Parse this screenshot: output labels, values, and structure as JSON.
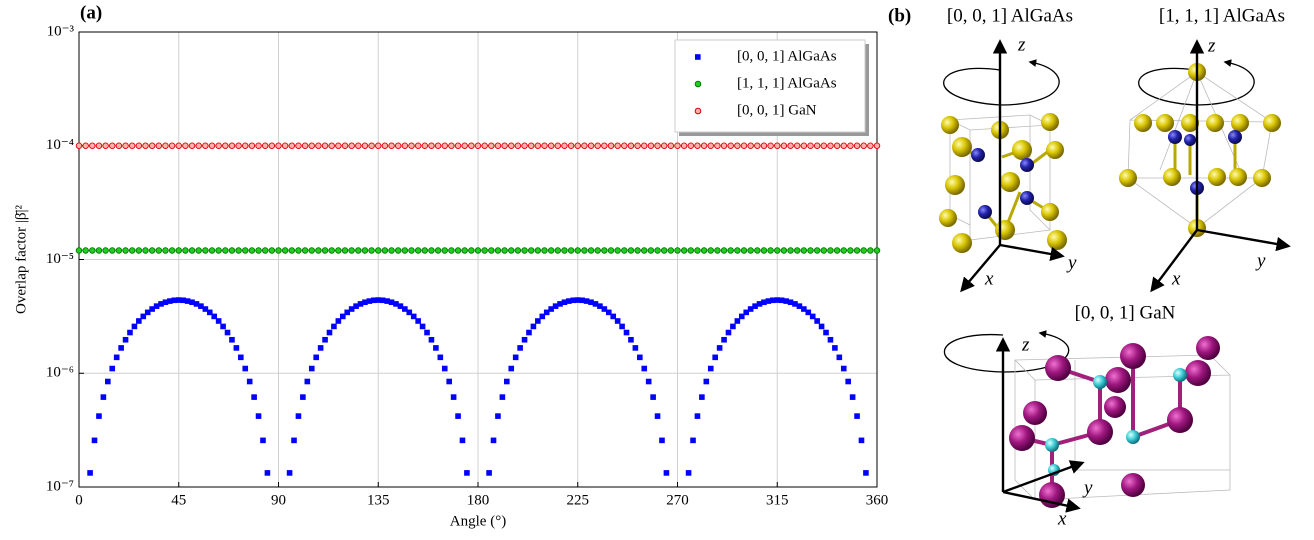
{
  "chart_data": {
    "type": "scatter",
    "panel_label": "(a)",
    "x_label": "Angle (°)",
    "y_label": "Overlap factor |β̄|²",
    "xlim": [
      0,
      360
    ],
    "xticks": [
      0,
      45,
      90,
      135,
      180,
      225,
      270,
      315,
      360
    ],
    "ylim": [
      1e-07,
      0.001
    ],
    "yscale": "log",
    "yticks": [
      {
        "value": 1e-07,
        "label": "10⁻⁷"
      },
      {
        "value": 1e-06,
        "label": "10⁻⁶"
      },
      {
        "value": 1e-05,
        "label": "10⁻⁵"
      },
      {
        "value": 0.0001,
        "label": "10⁻⁴"
      },
      {
        "value": 0.001,
        "label": "10⁻³"
      }
    ],
    "grid": true,
    "legend": "upper right",
    "x": [
      0,
      3,
      6,
      9,
      12,
      15,
      18,
      21,
      24,
      27,
      30,
      33,
      36,
      39,
      42,
      45,
      48,
      51,
      54,
      57,
      60,
      63,
      66,
      69,
      72,
      75,
      78,
      81,
      84,
      87,
      90,
      93,
      96,
      99,
      102,
      105,
      108,
      111,
      114,
      117,
      120,
      123,
      126,
      129,
      132,
      135,
      138,
      141,
      144,
      147,
      150,
      153,
      156,
      159,
      162,
      165,
      168,
      171,
      174,
      177,
      180,
      183,
      186,
      189,
      192,
      195,
      198,
      201,
      204,
      207,
      210,
      213,
      216,
      219,
      222,
      225,
      228,
      231,
      234,
      237,
      240,
      243,
      246,
      249,
      252,
      255,
      258,
      261,
      264,
      267,
      270,
      273,
      276,
      279,
      282,
      285,
      288,
      291,
      294,
      297,
      300,
      303,
      306,
      309,
      312,
      315,
      318,
      321,
      324,
      327,
      330,
      333,
      336,
      339,
      342,
      345,
      348,
      351,
      354,
      357,
      360
    ],
    "series": [
      {
        "name": "[0, 0, 1] AlGaAs",
        "color": "#0000ff",
        "marker": "square",
        "x": [
          5,
          7,
          9,
          11,
          13,
          15,
          17,
          19,
          21,
          23,
          25,
          27,
          29,
          31,
          33,
          35,
          37,
          39,
          41,
          43,
          45,
          47,
          49,
          51,
          53,
          55,
          57,
          59,
          61,
          63,
          65,
          67,
          69,
          71,
          73,
          75,
          77,
          79,
          81,
          83,
          85,
          95,
          97,
          99,
          101,
          103,
          105,
          107,
          109,
          111,
          113,
          115,
          117,
          119,
          121,
          123,
          125,
          127,
          129,
          131,
          133,
          135,
          137,
          139,
          141,
          143,
          145,
          147,
          149,
          151,
          153,
          155,
          157,
          159,
          161,
          163,
          165,
          167,
          169,
          171,
          173,
          175,
          185,
          187,
          189,
          191,
          193,
          195,
          197,
          199,
          201,
          203,
          205,
          207,
          209,
          211,
          213,
          215,
          217,
          219,
          221,
          223,
          225,
          227,
          229,
          231,
          233,
          235,
          237,
          239,
          241,
          243,
          245,
          247,
          249,
          251,
          253,
          255,
          257,
          259,
          261,
          263,
          265,
          275,
          277,
          279,
          281,
          283,
          285,
          287,
          289,
          291,
          293,
          295,
          297,
          299,
          301,
          303,
          305,
          307,
          309,
          311,
          313,
          315,
          317,
          319,
          321,
          323,
          325,
          327,
          329,
          331,
          333,
          335,
          337,
          339,
          341,
          343,
          345,
          347,
          349,
          351,
          353,
          355
        ],
        "values": [
          1.33e-07,
          2.57e-07,
          4.2e-07,
          6.17e-07,
          8.46e-07,
          1.1e-06,
          1.38e-06,
          1.67e-06,
          1.97e-06,
          2.28e-06,
          2.58e-06,
          2.88e-06,
          3.16e-06,
          3.43e-06,
          3.67e-06,
          3.89e-06,
          4.07e-06,
          4.21e-06,
          4.31e-06,
          4.38e-06,
          4.4e-06,
          4.38e-06,
          4.31e-06,
          4.21e-06,
          4.07e-06,
          3.89e-06,
          3.67e-06,
          3.43e-06,
          3.16e-06,
          2.88e-06,
          2.58e-06,
          2.28e-06,
          1.97e-06,
          1.67e-06,
          1.38e-06,
          1.1e-06,
          8.46e-07,
          6.17e-07,
          4.2e-07,
          2.57e-07,
          1.33e-07,
          1.33e-07,
          2.57e-07,
          4.2e-07,
          6.17e-07,
          8.46e-07,
          1.1e-06,
          1.38e-06,
          1.67e-06,
          1.97e-06,
          2.28e-06,
          2.58e-06,
          2.88e-06,
          3.16e-06,
          3.43e-06,
          3.67e-06,
          3.89e-06,
          4.07e-06,
          4.21e-06,
          4.31e-06,
          4.38e-06,
          4.4e-06,
          4.38e-06,
          4.31e-06,
          4.21e-06,
          4.07e-06,
          3.89e-06,
          3.67e-06,
          3.43e-06,
          3.16e-06,
          2.88e-06,
          2.58e-06,
          2.28e-06,
          1.97e-06,
          1.67e-06,
          1.38e-06,
          1.1e-06,
          8.46e-07,
          6.17e-07,
          4.2e-07,
          2.57e-07,
          1.33e-07,
          1.33e-07,
          2.57e-07,
          4.2e-07,
          6.17e-07,
          8.46e-07,
          1.1e-06,
          1.38e-06,
          1.67e-06,
          1.97e-06,
          2.28e-06,
          2.58e-06,
          2.88e-06,
          3.16e-06,
          3.43e-06,
          3.67e-06,
          3.89e-06,
          4.07e-06,
          4.21e-06,
          4.31e-06,
          4.38e-06,
          4.4e-06,
          4.38e-06,
          4.31e-06,
          4.21e-06,
          4.07e-06,
          3.89e-06,
          3.67e-06,
          3.43e-06,
          3.16e-06,
          2.88e-06,
          2.58e-06,
          2.28e-06,
          1.97e-06,
          1.67e-06,
          1.38e-06,
          1.1e-06,
          8.46e-07,
          6.17e-07,
          4.2e-07,
          2.57e-07,
          1.33e-07,
          1.33e-07,
          2.57e-07,
          4.2e-07,
          6.17e-07,
          8.46e-07,
          1.1e-06,
          1.38e-06,
          1.67e-06,
          1.97e-06,
          2.28e-06,
          2.58e-06,
          2.88e-06,
          3.16e-06,
          3.43e-06,
          3.67e-06,
          3.89e-06,
          4.07e-06,
          4.21e-06,
          4.31e-06,
          4.38e-06,
          4.4e-06,
          4.38e-06,
          4.31e-06,
          4.21e-06,
          4.07e-06,
          3.89e-06,
          3.67e-06,
          3.43e-06,
          3.16e-06,
          2.88e-06,
          2.58e-06,
          2.28e-06,
          1.97e-06,
          1.67e-06,
          1.38e-06,
          1.1e-06,
          8.46e-07,
          6.17e-07,
          4.2e-07,
          2.57e-07,
          1.33e-07
        ]
      },
      {
        "name": "[1, 1, 1] AlGaAs",
        "color": "#22cc22",
        "edge": "#007700",
        "marker": "circle",
        "values": [
          1.2e-05,
          1.2e-05,
          1.2e-05,
          1.2e-05,
          1.2e-05,
          1.2e-05,
          1.2e-05,
          1.2e-05,
          1.2e-05,
          1.2e-05,
          1.2e-05,
          1.2e-05,
          1.2e-05,
          1.2e-05,
          1.2e-05,
          1.2e-05,
          1.2e-05,
          1.2e-05,
          1.2e-05,
          1.2e-05,
          1.2e-05,
          1.2e-05,
          1.2e-05,
          1.2e-05,
          1.2e-05,
          1.2e-05,
          1.2e-05,
          1.2e-05,
          1.2e-05,
          1.2e-05,
          1.2e-05,
          1.2e-05,
          1.2e-05,
          1.2e-05,
          1.2e-05,
          1.2e-05,
          1.2e-05,
          1.2e-05,
          1.2e-05,
          1.2e-05,
          1.2e-05,
          1.2e-05,
          1.2e-05,
          1.2e-05,
          1.2e-05,
          1.2e-05,
          1.2e-05,
          1.2e-05,
          1.2e-05,
          1.2e-05,
          1.2e-05,
          1.2e-05,
          1.2e-05,
          1.2e-05,
          1.2e-05,
          1.2e-05,
          1.2e-05,
          1.2e-05,
          1.2e-05,
          1.2e-05,
          1.2e-05,
          1.2e-05,
          1.2e-05,
          1.2e-05,
          1.2e-05,
          1.2e-05,
          1.2e-05,
          1.2e-05,
          1.2e-05,
          1.2e-05,
          1.2e-05,
          1.2e-05,
          1.2e-05,
          1.2e-05,
          1.2e-05,
          1.2e-05,
          1.2e-05,
          1.2e-05,
          1.2e-05,
          1.2e-05,
          1.2e-05,
          1.2e-05,
          1.2e-05,
          1.2e-05,
          1.2e-05,
          1.2e-05,
          1.2e-05,
          1.2e-05,
          1.2e-05,
          1.2e-05,
          1.2e-05,
          1.2e-05,
          1.2e-05,
          1.2e-05,
          1.2e-05,
          1.2e-05,
          1.2e-05,
          1.2e-05,
          1.2e-05,
          1.2e-05,
          1.2e-05,
          1.2e-05,
          1.2e-05,
          1.2e-05,
          1.2e-05,
          1.2e-05,
          1.2e-05,
          1.2e-05,
          1.2e-05,
          1.2e-05,
          1.2e-05,
          1.2e-05,
          1.2e-05,
          1.2e-05,
          1.2e-05,
          1.2e-05,
          1.2e-05,
          1.2e-05,
          1.2e-05,
          1.2e-05,
          1.2e-05
        ]
      },
      {
        "name": "[0, 0, 1] GaN",
        "color": "#ffb0b0",
        "edge": "#dd0000",
        "marker": "circle",
        "values": [
          0.0001,
          0.0001,
          0.0001,
          0.0001,
          0.0001,
          0.0001,
          0.0001,
          0.0001,
          0.0001,
          0.0001,
          0.0001,
          0.0001,
          0.0001,
          0.0001,
          0.0001,
          0.0001,
          0.0001,
          0.0001,
          0.0001,
          0.0001,
          0.0001,
          0.0001,
          0.0001,
          0.0001,
          0.0001,
          0.0001,
          0.0001,
          0.0001,
          0.0001,
          0.0001,
          0.0001,
          0.0001,
          0.0001,
          0.0001,
          0.0001,
          0.0001,
          0.0001,
          0.0001,
          0.0001,
          0.0001,
          0.0001,
          0.0001,
          0.0001,
          0.0001,
          0.0001,
          0.0001,
          0.0001,
          0.0001,
          0.0001,
          0.0001,
          0.0001,
          0.0001,
          0.0001,
          0.0001,
          0.0001,
          0.0001,
          0.0001,
          0.0001,
          0.0001,
          0.0001,
          0.0001,
          0.0001,
          0.0001,
          0.0001,
          0.0001,
          0.0001,
          0.0001,
          0.0001,
          0.0001,
          0.0001,
          0.0001,
          0.0001,
          0.0001,
          0.0001,
          0.0001,
          0.0001,
          0.0001,
          0.0001,
          0.0001,
          0.0001,
          0.0001,
          0.0001,
          0.0001,
          0.0001,
          0.0001,
          0.0001,
          0.0001,
          0.0001,
          0.0001,
          0.0001,
          0.0001,
          0.0001,
          0.0001,
          0.0001,
          0.0001,
          0.0001,
          0.0001,
          0.0001,
          0.0001,
          0.0001,
          0.0001,
          0.0001,
          0.0001,
          0.0001,
          0.0001,
          0.0001,
          0.0001,
          0.0001,
          0.0001,
          0.0001,
          0.0001,
          0.0001,
          0.0001,
          0.0001,
          0.0001,
          0.0001,
          0.0001,
          0.0001,
          0.0001,
          0.0001,
          0.0001
        ]
      }
    ]
  },
  "panel_b": {
    "label": "(b)",
    "structures": [
      {
        "title": "[0, 0, 1] AlGaAs",
        "axes": [
          "z",
          "x",
          "y"
        ]
      },
      {
        "title": "[1, 1, 1] AlGaAs",
        "axes": [
          "z",
          "x",
          "y"
        ]
      },
      {
        "title": "[0, 0, 1] GaN",
        "axes": [
          "z",
          "x",
          "y"
        ]
      }
    ]
  }
}
